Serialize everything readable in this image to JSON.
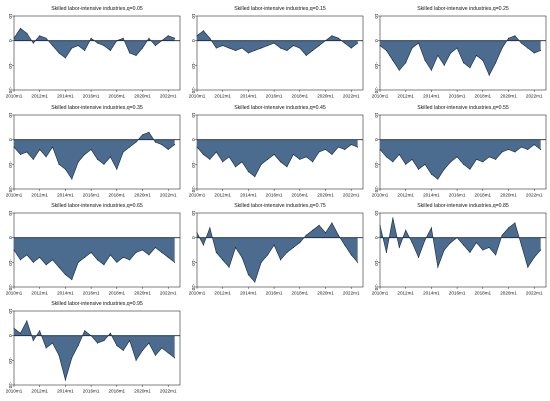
{
  "figure": {
    "series_fill": "#4b6b8f",
    "series_stroke": "#14283f",
    "background": "#ffffff"
  },
  "chart_data": [
    {
      "type": "area",
      "title": "Skilled labor-intensive industries,q=0.05",
      "ylim": [
        -20,
        10
      ],
      "yticks": [
        10,
        0,
        -10,
        -20
      ],
      "xticks": [
        "2010m1",
        "2012m1",
        "2014m1",
        "2016m1",
        "2018m1",
        "2020m1",
        "2022m1"
      ],
      "grid": false,
      "x": [
        "2010m1",
        "2010m7",
        "2011m1",
        "2011m7",
        "2012m1",
        "2012m7",
        "2013m1",
        "2013m7",
        "2014m1",
        "2014m7",
        "2015m1",
        "2015m7",
        "2016m1",
        "2016m7",
        "2017m1",
        "2017m7",
        "2018m1",
        "2018m7",
        "2019m1",
        "2019m7",
        "2020m1",
        "2020m7",
        "2021m1",
        "2021m7",
        "2022m1",
        "2022m7"
      ],
      "values": [
        1,
        5,
        3,
        -1,
        2,
        1,
        -2,
        -5,
        -7,
        -3,
        -2,
        -4,
        1,
        -1,
        -2,
        -4,
        0,
        1,
        -5,
        -6,
        -3,
        1,
        -2,
        0,
        2,
        1
      ]
    },
    {
      "type": "area",
      "title": "Skilled labor-intensive industries,q=0.15",
      "ylim": [
        -20,
        10
      ],
      "yticks": [
        10,
        0,
        -10,
        -20
      ],
      "xticks": [
        "2010m1",
        "2012m1",
        "2014m1",
        "2016m1",
        "2018m1",
        "2020m1",
        "2022m1"
      ],
      "grid": false,
      "x": [
        "2010m1",
        "2010m7",
        "2011m1",
        "2011m7",
        "2012m1",
        "2012m7",
        "2013m1",
        "2013m7",
        "2014m1",
        "2014m7",
        "2015m1",
        "2015m7",
        "2016m1",
        "2016m7",
        "2017m1",
        "2017m7",
        "2018m1",
        "2018m7",
        "2019m1",
        "2019m7",
        "2020m1",
        "2020m7",
        "2021m1",
        "2021m7",
        "2022m1",
        "2022m7"
      ],
      "values": [
        2,
        4,
        1,
        -3,
        -2,
        -3,
        -4,
        -3,
        -5,
        -4,
        -3,
        -2,
        -1,
        -3,
        -4,
        -2,
        -3,
        -6,
        -4,
        -2,
        0,
        2,
        1,
        -1,
        -3,
        -1
      ]
    },
    {
      "type": "area",
      "title": "Skilled labor-intensive industries,q=0.25",
      "ylim": [
        -20,
        10
      ],
      "yticks": [
        10,
        0,
        -10,
        -20
      ],
      "xticks": [
        "2010m1",
        "2012m1",
        "2014m1",
        "2016m1",
        "2018m1",
        "2020m1",
        "2022m1"
      ],
      "grid": false,
      "x": [
        "2010m1",
        "2010m7",
        "2011m1",
        "2011m7",
        "2012m1",
        "2012m7",
        "2013m1",
        "2013m7",
        "2014m1",
        "2014m7",
        "2015m1",
        "2015m7",
        "2016m1",
        "2016m7",
        "2017m1",
        "2017m7",
        "2018m1",
        "2018m7",
        "2019m1",
        "2019m7",
        "2020m1",
        "2020m7",
        "2021m1",
        "2021m7",
        "2022m1",
        "2022m7"
      ],
      "values": [
        -2,
        -4,
        -8,
        -12,
        -9,
        -3,
        -1,
        -8,
        -12,
        -6,
        -10,
        -5,
        -3,
        -9,
        -11,
        -6,
        -8,
        -14,
        -9,
        -3,
        1,
        2,
        -1,
        -3,
        -5,
        -4
      ]
    },
    {
      "type": "area",
      "title": "Skilled labor-intensive industries,q=0.35",
      "ylim": [
        -20,
        10
      ],
      "yticks": [
        10,
        0,
        -10,
        -20
      ],
      "xticks": [
        "2010m1",
        "2012m1",
        "2014m1",
        "2016m1",
        "2018m1",
        "2020m1",
        "2022m1"
      ],
      "grid": false,
      "x": [
        "2010m1",
        "2010m7",
        "2011m1",
        "2011m7",
        "2012m1",
        "2012m7",
        "2013m1",
        "2013m7",
        "2014m1",
        "2014m7",
        "2015m1",
        "2015m7",
        "2016m1",
        "2016m7",
        "2017m1",
        "2017m7",
        "2018m1",
        "2018m7",
        "2019m1",
        "2019m7",
        "2020m1",
        "2020m7",
        "2021m1",
        "2021m7",
        "2022m1",
        "2022m7"
      ],
      "values": [
        -3,
        -6,
        -5,
        -8,
        -4,
        -7,
        -3,
        -10,
        -12,
        -16,
        -9,
        -6,
        -4,
        -8,
        -10,
        -7,
        -12,
        -5,
        -3,
        -1,
        2,
        3,
        -1,
        -2,
        -4,
        -2
      ]
    },
    {
      "type": "area",
      "title": "Skilled labor-intensive industries,q=0.45",
      "ylim": [
        -20,
        10
      ],
      "yticks": [
        10,
        0,
        -10,
        -20
      ],
      "xticks": [
        "2010m1",
        "2012m1",
        "2014m1",
        "2016m1",
        "2018m1",
        "2020m1",
        "2022m1"
      ],
      "grid": false,
      "x": [
        "2010m1",
        "2010m7",
        "2011m1",
        "2011m7",
        "2012m1",
        "2012m7",
        "2013m1",
        "2013m7",
        "2014m1",
        "2014m7",
        "2015m1",
        "2015m7",
        "2016m1",
        "2016m7",
        "2017m1",
        "2017m7",
        "2018m1",
        "2018m7",
        "2019m1",
        "2019m7",
        "2020m1",
        "2020m7",
        "2021m1",
        "2021m7",
        "2022m1",
        "2022m7"
      ],
      "values": [
        -3,
        -6,
        -8,
        -5,
        -9,
        -7,
        -11,
        -9,
        -13,
        -15,
        -10,
        -8,
        -6,
        -9,
        -11,
        -6,
        -8,
        -7,
        -9,
        -5,
        -4,
        -6,
        -3,
        -4,
        -2,
        -3
      ]
    },
    {
      "type": "area",
      "title": "Skilled labor-intensive industries,q=0.55",
      "ylim": [
        -20,
        10
      ],
      "yticks": [
        10,
        0,
        -10,
        -20
      ],
      "xticks": [
        "2010m1",
        "2012m1",
        "2014m1",
        "2016m1",
        "2018m1",
        "2020m1",
        "2022m1"
      ],
      "grid": false,
      "x": [
        "2010m1",
        "2010m7",
        "2011m1",
        "2011m7",
        "2012m1",
        "2012m7",
        "2013m1",
        "2013m7",
        "2014m1",
        "2014m7",
        "2015m1",
        "2015m7",
        "2016m1",
        "2016m7",
        "2017m1",
        "2017m7",
        "2018m1",
        "2018m7",
        "2019m1",
        "2019m7",
        "2020m1",
        "2020m7",
        "2021m1",
        "2021m7",
        "2022m1",
        "2022m7"
      ],
      "values": [
        -4,
        -7,
        -9,
        -6,
        -10,
        -8,
        -12,
        -10,
        -14,
        -16,
        -12,
        -9,
        -7,
        -10,
        -12,
        -8,
        -9,
        -7,
        -8,
        -5,
        -4,
        -5,
        -3,
        -4,
        -2,
        -4
      ]
    },
    {
      "type": "area",
      "title": "Skilled labor-intensive industries,q=0.65",
      "ylim": [
        -20,
        10
      ],
      "yticks": [
        10,
        0,
        -10,
        -20
      ],
      "xticks": [
        "2010m1",
        "2012m1",
        "2014m1",
        "2016m1",
        "2018m1",
        "2020m1",
        "2022m1"
      ],
      "grid": false,
      "x": [
        "2010m1",
        "2010m7",
        "2011m1",
        "2011m7",
        "2012m1",
        "2012m7",
        "2013m1",
        "2013m7",
        "2014m1",
        "2014m7",
        "2015m1",
        "2015m7",
        "2016m1",
        "2016m7",
        "2017m1",
        "2017m7",
        "2018m1",
        "2018m7",
        "2019m1",
        "2019m7",
        "2020m1",
        "2020m7",
        "2021m1",
        "2021m7",
        "2022m1",
        "2022m7"
      ],
      "values": [
        -5,
        -9,
        -7,
        -10,
        -8,
        -11,
        -9,
        -12,
        -15,
        -17,
        -10,
        -8,
        -6,
        -9,
        -11,
        -7,
        -10,
        -8,
        -9,
        -6,
        -5,
        -7,
        -4,
        -6,
        -8,
        -10
      ]
    },
    {
      "type": "area",
      "title": "Skilled labor-intensive industries,q=0.75",
      "ylim": [
        -20,
        10
      ],
      "yticks": [
        10,
        0,
        -10,
        -20
      ],
      "xticks": [
        "2010m1",
        "2012m1",
        "2014m1",
        "2016m1",
        "2018m1",
        "2020m1",
        "2022m1"
      ],
      "grid": false,
      "x": [
        "2010m1",
        "2010m7",
        "2011m1",
        "2011m7",
        "2012m1",
        "2012m7",
        "2013m1",
        "2013m7",
        "2014m1",
        "2014m7",
        "2015m1",
        "2015m7",
        "2016m1",
        "2016m7",
        "2017m1",
        "2017m7",
        "2018m1",
        "2018m7",
        "2019m1",
        "2019m7",
        "2020m1",
        "2020m7",
        "2021m1",
        "2021m7",
        "2022m1",
        "2022m7"
      ],
      "values": [
        2,
        -3,
        4,
        -6,
        -9,
        -12,
        -4,
        -8,
        -15,
        -18,
        -10,
        -7,
        -3,
        -9,
        -6,
        -4,
        -2,
        1,
        3,
        5,
        2,
        6,
        1,
        -3,
        -7,
        -10
      ]
    },
    {
      "type": "area",
      "title": "Skilled labor-intensive industries,q=0.85",
      "ylim": [
        -20,
        10
      ],
      "yticks": [
        10,
        0,
        -10,
        -20
      ],
      "xticks": [
        "2010m1",
        "2012m1",
        "2014m1",
        "2016m1",
        "2018m1",
        "2020m1",
        "2022m1"
      ],
      "grid": false,
      "x": [
        "2010m1",
        "2010m7",
        "2011m1",
        "2011m7",
        "2012m1",
        "2012m7",
        "2013m1",
        "2013m7",
        "2014m1",
        "2014m7",
        "2015m1",
        "2015m7",
        "2016m1",
        "2016m7",
        "2017m1",
        "2017m7",
        "2018m1",
        "2018m7",
        "2019m1",
        "2019m7",
        "2020m1",
        "2020m7",
        "2021m1",
        "2021m7",
        "2022m1",
        "2022m7"
      ],
      "values": [
        5,
        -6,
        8,
        -4,
        3,
        -2,
        -8,
        -1,
        4,
        -12,
        -5,
        -2,
        0,
        -3,
        -6,
        -2,
        -5,
        -4,
        -7,
        1,
        4,
        6,
        -3,
        -12,
        -8,
        -5
      ]
    },
    {
      "type": "area",
      "title": "Skilled labor-intensive industries,q=0.95",
      "ylim": [
        -20,
        10
      ],
      "yticks": [
        10,
        0,
        -10,
        -20
      ],
      "xticks": [
        "2010m1",
        "2012m1",
        "2014m1",
        "2016m1",
        "2018m1",
        "2020m1",
        "2022m1"
      ],
      "grid": false,
      "x": [
        "2010m1",
        "2010m7",
        "2011m1",
        "2011m7",
        "2012m1",
        "2012m7",
        "2013m1",
        "2013m7",
        "2014m1",
        "2014m7",
        "2015m1",
        "2015m7",
        "2016m1",
        "2016m7",
        "2017m1",
        "2017m7",
        "2018m1",
        "2018m7",
        "2019m1",
        "2019m7",
        "2020m1",
        "2020m7",
        "2021m1",
        "2021m7",
        "2022m1",
        "2022m7"
      ],
      "values": [
        3,
        1,
        6,
        -2,
        2,
        -5,
        -3,
        -8,
        -18,
        -9,
        -4,
        2,
        0,
        -3,
        -2,
        1,
        -4,
        -6,
        -2,
        -10,
        -6,
        -3,
        -8,
        -5,
        -7,
        -9
      ]
    }
  ]
}
